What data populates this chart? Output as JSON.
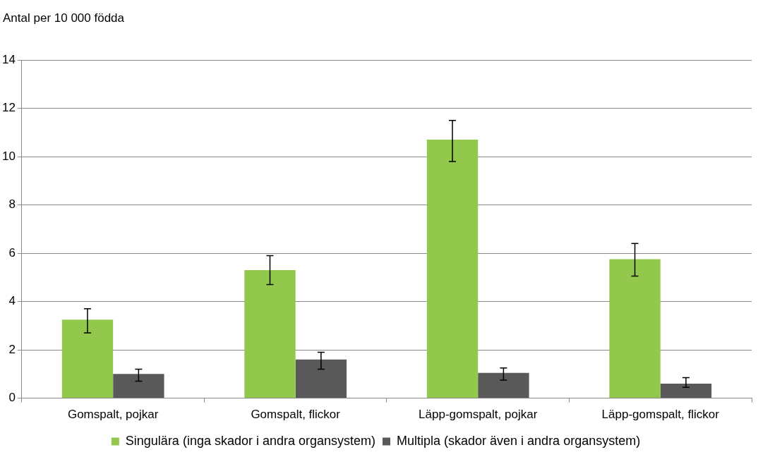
{
  "chart_data": {
    "type": "bar",
    "ylabel": "Antal per 10 000 födda",
    "categories": [
      "Gomspalt, pojkar",
      "Gomspalt, flickor",
      "Läpp-gomspalt, pojkar",
      "Läpp-gomspalt, flickor"
    ],
    "series": [
      {
        "name": "Singulära (inga skador i andra organsystem)",
        "color": "#92c84c",
        "values": [
          3.25,
          5.3,
          10.7,
          5.75
        ],
        "errors": [
          [
            2.7,
            3.7
          ],
          [
            4.7,
            5.9
          ],
          [
            9.8,
            11.5
          ],
          [
            5.05,
            6.4
          ]
        ]
      },
      {
        "name": "Multipla (skador även i andra organsystem)",
        "color": "#595959",
        "values": [
          1.0,
          1.6,
          1.05,
          0.6
        ],
        "errors": [
          [
            0.7,
            1.2
          ],
          [
            1.2,
            1.9
          ],
          [
            0.75,
            1.25
          ],
          [
            0.45,
            0.85
          ]
        ]
      }
    ],
    "ylim": [
      0,
      14
    ],
    "yticks": [
      0,
      2,
      4,
      6,
      8,
      10,
      12,
      14
    ],
    "grid": "y",
    "legend": "bottom"
  }
}
